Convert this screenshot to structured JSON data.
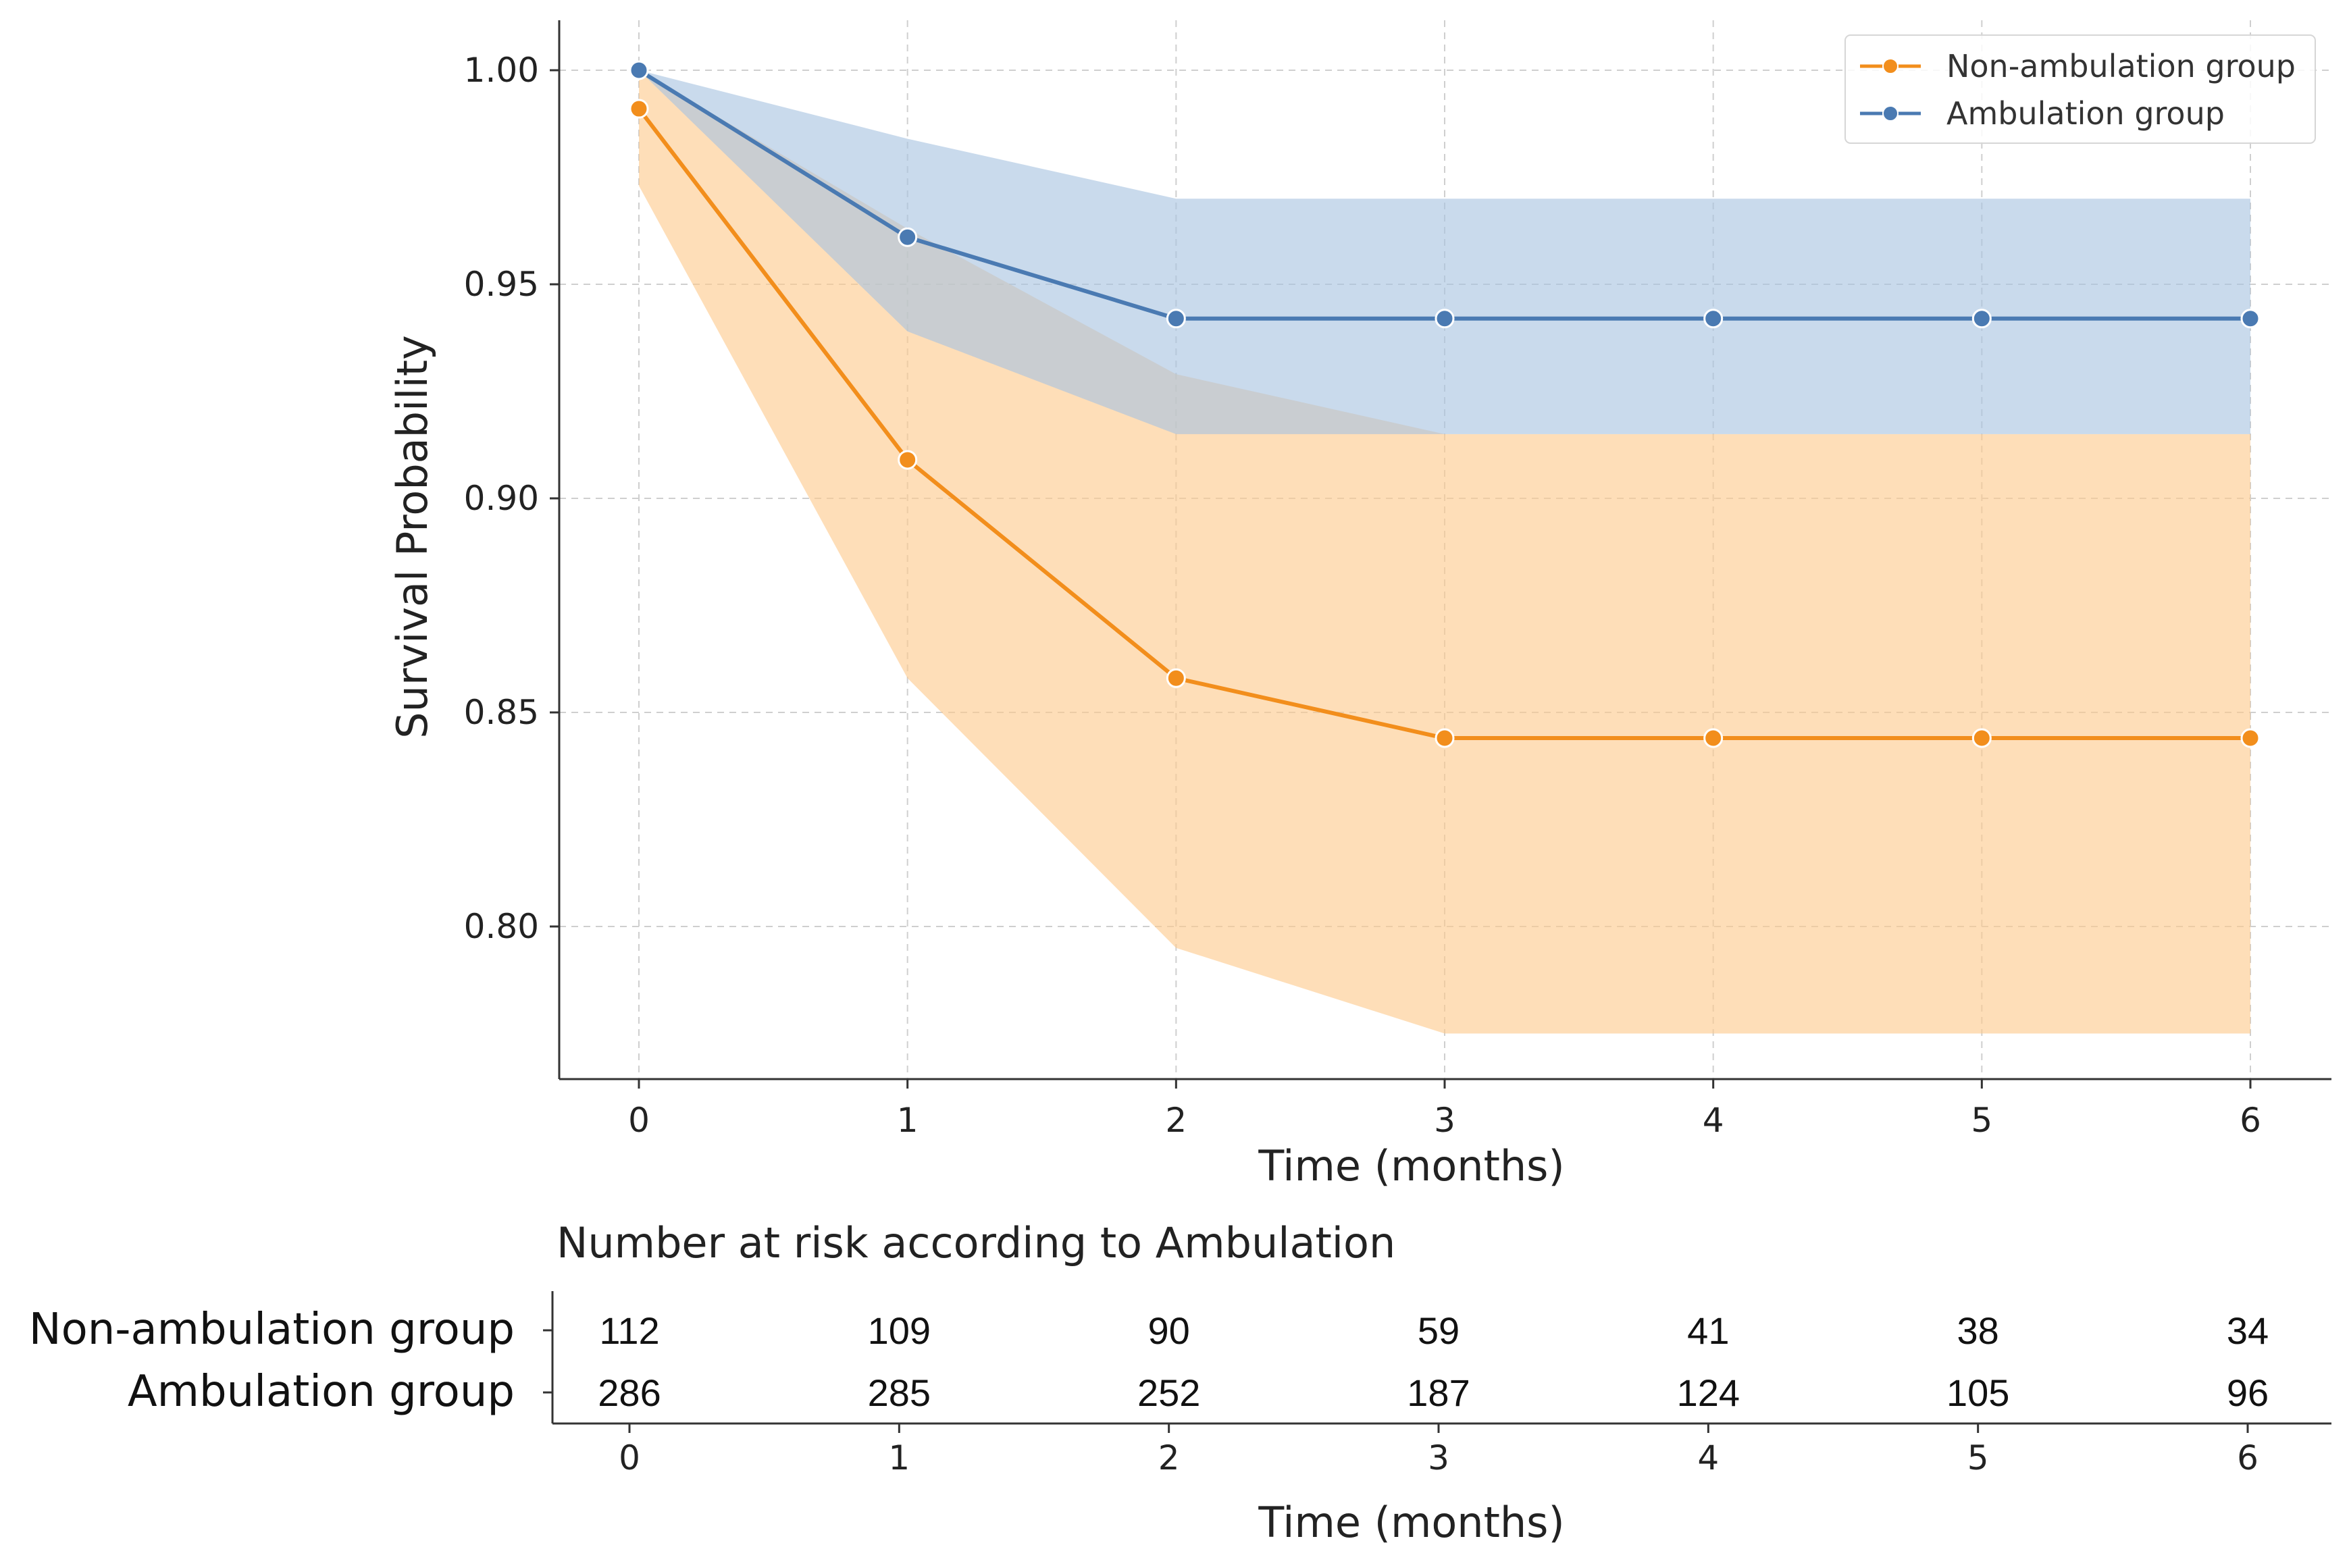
{
  "chart_data": [
    {
      "type": "line",
      "title": "",
      "xlabel": "Time (months)",
      "ylabel": "Survival Probability",
      "x": [
        0,
        1,
        2,
        3,
        4,
        5,
        6
      ],
      "xticks": [
        "0",
        "1",
        "2",
        "3",
        "4",
        "5",
        "6"
      ],
      "yticks": [
        "0.80",
        "0.85",
        "0.90",
        "0.95",
        "1.00"
      ],
      "ytick_values": [
        0.8,
        0.85,
        0.9,
        0.95,
        1.0
      ],
      "xlim": [
        -0.3,
        6.3
      ],
      "ylim": [
        0.765,
        1.011
      ],
      "grid": true,
      "grid_style": "dashed",
      "legend_position": "top-right",
      "series": [
        {
          "name": "Non-ambulation group",
          "color": "#f28e1c",
          "band_color": "#fdc98c",
          "marker": "circle",
          "values": [
            0.991,
            0.909,
            0.858,
            0.844,
            0.844,
            0.844,
            0.844
          ],
          "ci_lower": [
            0.973,
            0.858,
            0.795,
            0.775,
            0.775,
            0.775,
            0.775
          ],
          "ci_upper": [
            1.0,
            0.963,
            0.929,
            0.915,
            0.915,
            0.915,
            0.915
          ]
        },
        {
          "name": "Ambulation group",
          "color": "#4a7ab2",
          "band_color": "#a8c3e0",
          "marker": "circle",
          "values": [
            1.0,
            0.961,
            0.942,
            0.942,
            0.942,
            0.942,
            0.942
          ],
          "ci_lower": [
            1.0,
            0.939,
            0.915,
            0.915,
            0.915,
            0.915,
            0.915
          ],
          "ci_upper": [
            1.0,
            0.984,
            0.97,
            0.97,
            0.97,
            0.97,
            0.97
          ]
        }
      ]
    },
    {
      "type": "table",
      "title": "Number at risk according to Ambulation",
      "xlabel": "Time (months)",
      "columns": [
        "0",
        "1",
        "2",
        "3",
        "4",
        "5",
        "6"
      ],
      "rows": [
        {
          "label": "Non-ambulation group",
          "values": [
            "112",
            "109",
            "90",
            "59",
            "41",
            "38",
            "34"
          ]
        },
        {
          "label": "Ambulation group",
          "values": [
            "286",
            "285",
            "252",
            "187",
            "124",
            "105",
            "96"
          ]
        }
      ]
    }
  ]
}
